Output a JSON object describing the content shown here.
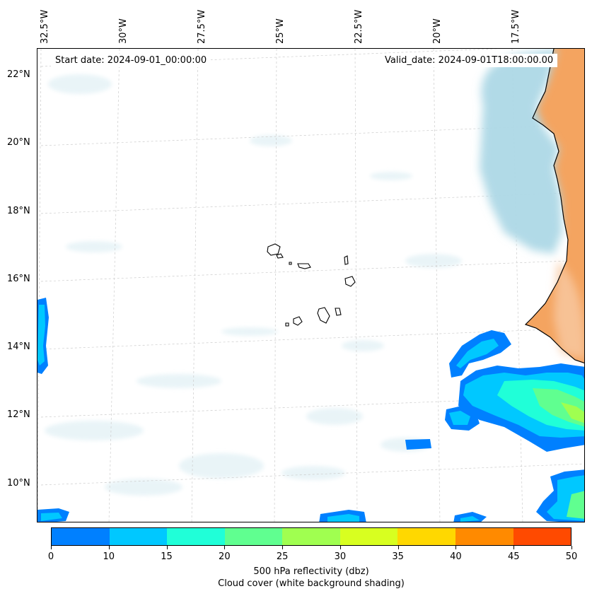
{
  "header": {
    "start_date": "Start date: 2024-09-01_00:00:00",
    "valid_date": "Valid_date: 2024-09-01T18:00:00.00"
  },
  "longitude_labels": [
    "32.5°W",
    "30°W",
    "27.5°W",
    "25°W",
    "22.5°W",
    "20°W",
    "17.5°W"
  ],
  "latitude_labels": [
    "22°N",
    "20°N",
    "18°N",
    "16°N",
    "14°N",
    "12°N",
    "10°N"
  ],
  "colorbar": {
    "ticks": [
      "0",
      "10",
      "15",
      "20",
      "25",
      "30",
      "35",
      "40",
      "45",
      "50"
    ],
    "colors": [
      "#0080ff",
      "#00c8ff",
      "#20ffd8",
      "#60ff90",
      "#a0ff50",
      "#d8ff20",
      "#ffd800",
      "#ff8a00",
      "#ff4a00"
    ],
    "label_line1": "500 hPa reflectivity (dbz)",
    "label_line2": "Cloud cover (white background shading)"
  },
  "colors": {
    "land": "#f4a460",
    "cloud": "#add8e6",
    "coast": "#000000"
  }
}
